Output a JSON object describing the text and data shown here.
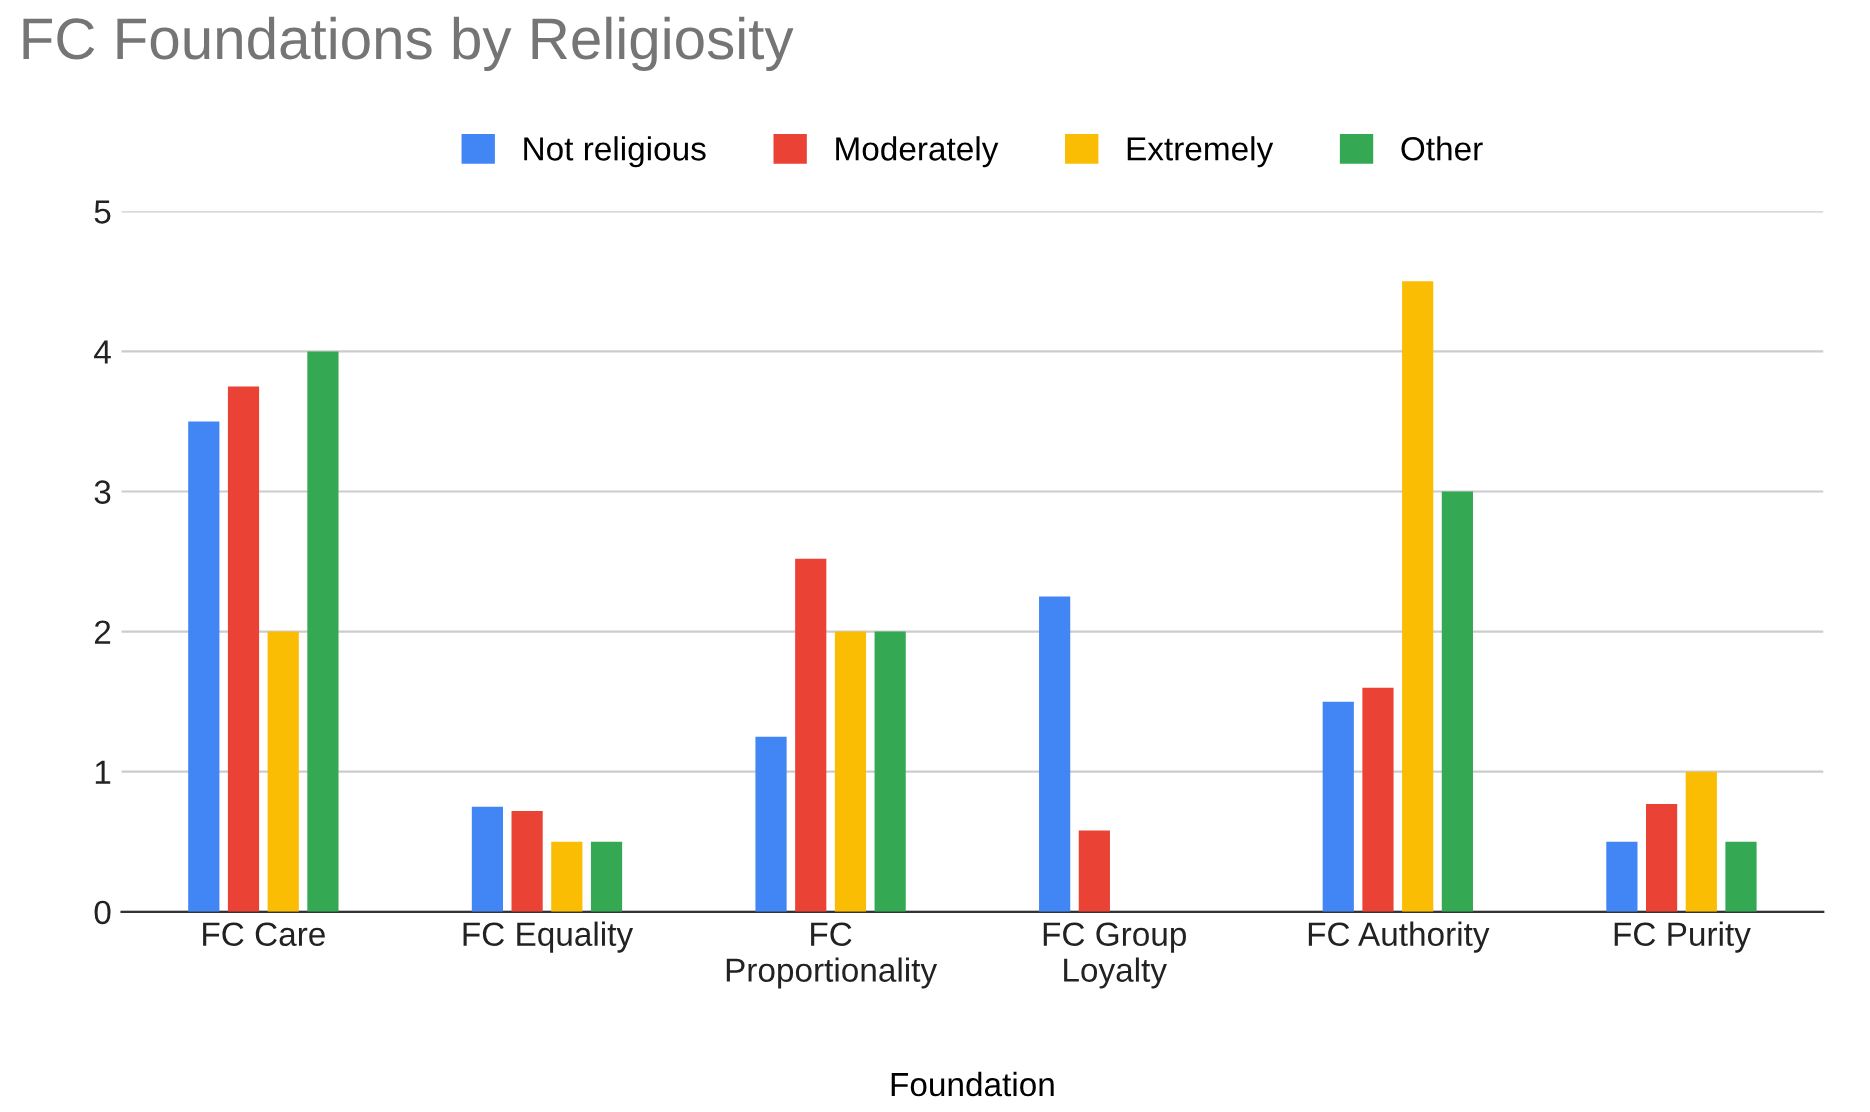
{
  "chart_data": {
    "type": "bar",
    "title": "FC Foundations by Religiosity",
    "xlabel": "Foundation",
    "categories": [
      "FC Care",
      "FC Equality",
      "FC\nProportionality",
      "FC Group\nLoyalty",
      "FC Authority",
      "FC Purity"
    ],
    "series": [
      {
        "name": "Not religious",
        "color": "#4285f4",
        "values": [
          3.5,
          0.75,
          1.25,
          2.25,
          1.5,
          0.5
        ]
      },
      {
        "name": "Moderately",
        "color": "#ea4335",
        "values": [
          3.75,
          0.72,
          2.52,
          0.58,
          1.6,
          0.77
        ]
      },
      {
        "name": "Extremely",
        "color": "#fbbc04",
        "values": [
          2,
          0.5,
          2,
          null,
          4.5,
          1
        ]
      },
      {
        "name": "Other",
        "color": "#34a853",
        "values": [
          4,
          0.5,
          2,
          null,
          3,
          0.5
        ]
      }
    ],
    "ylim": [
      0,
      5
    ],
    "yticks": [
      0,
      1,
      2,
      3,
      4,
      5
    ],
    "grid": "y",
    "legend": "top"
  }
}
